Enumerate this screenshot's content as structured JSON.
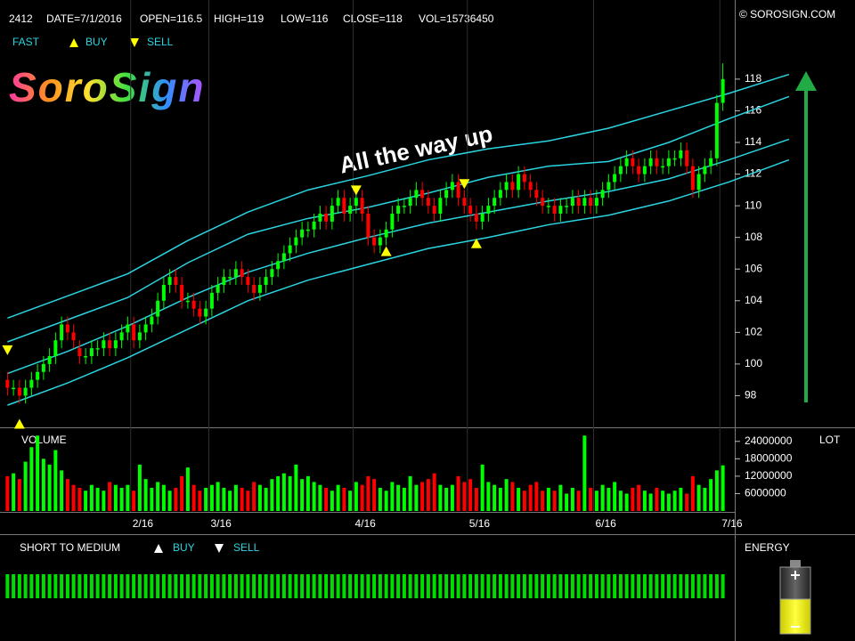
{
  "chart_data": {
    "type": "candlestick",
    "header": [
      "2412",
      "DATE=7/1/2016",
      "OPEN=116.5",
      "HIGH=119",
      "LOW=116",
      "CLOSE=118",
      "VOL=15736450"
    ],
    "copyright": "© SOROSIGN.COM",
    "logo": "SoroSign",
    "legend": {
      "name": "FAST",
      "buy": "BUY",
      "sell": "SELL"
    },
    "annotation": "All the way up",
    "up_color": "#00ff00",
    "down_color": "#ff0000",
    "categories": [
      null,
      null,
      null,
      null,
      null,
      null,
      null,
      null,
      null,
      null,
      null,
      null,
      null,
      null,
      null,
      null,
      null,
      null,
      null,
      null,
      null,
      "2/16",
      null,
      null,
      null,
      null,
      null,
      null,
      null,
      null,
      null,
      null,
      null,
      null,
      "3/16",
      null,
      null,
      null,
      null,
      null,
      null,
      null,
      null,
      null,
      null,
      null,
      null,
      null,
      null,
      null,
      null,
      null,
      null,
      null,
      null,
      null,
      null,
      null,
      "4/16",
      null,
      null,
      null,
      null,
      null,
      null,
      null,
      null,
      null,
      null,
      null,
      null,
      null,
      null,
      null,
      null,
      null,
      null,
      "5/16",
      null,
      null,
      null,
      null,
      null,
      null,
      null,
      null,
      null,
      null,
      null,
      null,
      null,
      null,
      null,
      null,
      null,
      null,
      null,
      null,
      "6/16",
      null,
      null,
      null,
      null,
      null,
      null,
      null,
      null,
      null,
      null,
      null,
      null,
      null,
      null,
      null,
      null,
      null,
      null,
      null,
      null,
      "7/16"
    ],
    "open": [
      99,
      98.5,
      98.5,
      98,
      98.5,
      99,
      99.5,
      100,
      100.5,
      101.5,
      102.5,
      102,
      101,
      100.5,
      100.5,
      101,
      101,
      101.5,
      101,
      101.5,
      102,
      102.5,
      101.5,
      102,
      102.5,
      103,
      104,
      105,
      105.5,
      105,
      104,
      104,
      103.5,
      103,
      103.5,
      104.5,
      105,
      105.5,
      105.5,
      106,
      105.5,
      105,
      104.5,
      105,
      105.5,
      106,
      106.5,
      107,
      107.5,
      108,
      108.5,
      108.5,
      109,
      109.5,
      109,
      110,
      110.5,
      109.5,
      110,
      110.5,
      109.5,
      108,
      107.5,
      108,
      108.5,
      109.5,
      110,
      110,
      110.5,
      111,
      110.5,
      110,
      109.5,
      110.5,
      111,
      111.5,
      110.5,
      110,
      109.5,
      109,
      109.5,
      110,
      110.5,
      111,
      111.5,
      111,
      112,
      111.5,
      111,
      110.5,
      110,
      110,
      109.5,
      110,
      110,
      110.5,
      110,
      110.5,
      110,
      110.5,
      111,
      111.5,
      112,
      112.5,
      113,
      112.5,
      112,
      112.5,
      113,
      112.5,
      112.5,
      113,
      113,
      113.5,
      112.5,
      111,
      112,
      112.5,
      113,
      116.5
    ],
    "high": [
      99.5,
      99,
      99,
      99,
      99.5,
      100,
      100.5,
      101,
      102,
      103,
      103,
      102.5,
      101.5,
      101,
      101.5,
      101.5,
      102,
      102,
      102,
      102.5,
      103,
      103,
      102.5,
      103,
      103.5,
      104.5,
      105.5,
      106,
      106,
      105.5,
      104.5,
      104.5,
      104,
      104,
      105,
      105.5,
      106,
      106,
      106.5,
      106.5,
      106,
      105.5,
      105.5,
      106,
      106.5,
      107,
      107.5,
      108,
      108.5,
      109,
      109,
      109.5,
      110,
      110,
      110.5,
      111,
      111,
      110.5,
      111,
      111,
      110,
      108.5,
      108.5,
      109,
      110,
      110.5,
      110.5,
      111,
      111.5,
      111.5,
      111,
      110.5,
      111,
      111.5,
      112,
      112,
      111,
      110.5,
      110,
      110,
      110.5,
      111,
      111.5,
      112,
      112,
      112.5,
      112.5,
      112,
      111.5,
      111,
      110.5,
      110.5,
      110.5,
      110.5,
      111,
      111,
      111,
      111,
      111,
      111.5,
      112,
      112.5,
      113,
      113.5,
      113.5,
      113,
      113,
      113.5,
      113.5,
      113,
      113.5,
      113.5,
      114,
      114,
      113,
      112.5,
      113,
      113.5,
      117,
      119
    ],
    "low": [
      98,
      98,
      97.5,
      97.5,
      98,
      98.5,
      99,
      99.5,
      100,
      101,
      101.5,
      101,
      100,
      100,
      100,
      100.5,
      100.5,
      100.5,
      100.5,
      101,
      101.5,
      101,
      101,
      101.5,
      102,
      102.5,
      103.5,
      104.5,
      104.5,
      103.5,
      103.5,
      103,
      102.5,
      102.5,
      103,
      104,
      104.5,
      105,
      105,
      105,
      104.5,
      104,
      104,
      104.5,
      105,
      105.5,
      106,
      106.5,
      107,
      107.5,
      108,
      108,
      108.5,
      108.5,
      108.5,
      109.5,
      109,
      109,
      109.5,
      109,
      107.5,
      107,
      107,
      107.5,
      108,
      109,
      109.5,
      109.5,
      110,
      110,
      109.5,
      109,
      109,
      110,
      110.5,
      110,
      109.5,
      109,
      108.5,
      108.5,
      109,
      109.5,
      110,
      110.5,
      110.5,
      110.5,
      111,
      110.5,
      110,
      109.5,
      109.5,
      109,
      109,
      109.5,
      109.5,
      109.5,
      109.5,
      109.5,
      109.5,
      110,
      110.5,
      111,
      111.5,
      112,
      112,
      111.5,
      111.5,
      112,
      112,
      112,
      112,
      112.5,
      112.5,
      112,
      110.5,
      110.5,
      111.5,
      112,
      112.5,
      116
    ],
    "close": [
      98.5,
      98.5,
      98,
      98.5,
      99,
      99.5,
      100,
      100.5,
      101.5,
      102.5,
      102,
      101.5,
      100.5,
      100.5,
      101,
      101,
      101.5,
      101,
      101.5,
      102,
      102.5,
      101.5,
      102,
      102.5,
      103,
      104,
      105,
      105.5,
      105,
      104,
      104,
      103.5,
      103,
      103.5,
      104.5,
      105,
      105.5,
      105.5,
      106,
      105.5,
      105,
      104.5,
      105,
      105.5,
      106,
      106.5,
      107,
      107.5,
      108,
      108.5,
      108.5,
      109,
      109.5,
      109,
      110,
      110.5,
      109.5,
      110,
      110.5,
      109.5,
      108,
      107.5,
      108,
      108.5,
      109.5,
      110,
      110,
      110.5,
      111,
      110.5,
      110,
      109.5,
      110.5,
      111,
      111.5,
      110.5,
      110,
      109.5,
      109,
      109.5,
      110,
      110.5,
      111,
      111.5,
      111,
      112,
      111.5,
      111,
      110.5,
      110,
      110,
      109.5,
      110,
      110,
      110.5,
      110,
      110.5,
      110,
      110.5,
      111,
      111.5,
      112,
      112.5,
      113,
      112.5,
      112,
      112.5,
      113,
      112.5,
      112.5,
      113,
      113,
      113.5,
      112.5,
      111,
      112,
      112.5,
      113,
      116.5,
      118
    ],
    "ylim": [
      96,
      123
    ],
    "yticks": [
      98,
      100,
      102,
      104,
      106,
      108,
      110,
      112,
      114,
      116,
      118
    ],
    "bands": {
      "color": "#2ad4e0",
      "x": [
        0,
        10,
        20,
        30,
        40,
        50,
        60,
        70,
        80,
        90,
        100,
        110,
        120,
        130
      ],
      "series": [
        {
          "values": [
            102.9,
            104.3,
            105.7,
            107.8,
            109.6,
            111,
            111.9,
            112.9,
            113.6,
            114.1,
            114.9,
            116,
            117.1,
            118.3
          ]
        },
        {
          "values": [
            101.4,
            102.8,
            104.2,
            106.4,
            108.2,
            109.2,
            109.9,
            110.8,
            111.8,
            112.5,
            112.8,
            114,
            115.5,
            116.9
          ]
        },
        {
          "values": [
            99.4,
            100.8,
            102.4,
            104.2,
            105.8,
            107,
            108,
            108.9,
            109.6,
            110.3,
            110.9,
            111.7,
            112.9,
            114.2
          ]
        },
        {
          "values": [
            97.4,
            98.8,
            100.4,
            102.2,
            104,
            105.3,
            106.3,
            107.3,
            108,
            108.8,
            109.4,
            110.3,
            111.5,
            112.9
          ]
        }
      ]
    },
    "signal_color": "#ffff00",
    "buy_signals": {
      "x": [
        2,
        63,
        78
      ],
      "values": [
        96.2,
        107.1,
        107.6
      ]
    },
    "sell_signals": {
      "x": [
        0,
        58,
        76
      ],
      "values": [
        100.9,
        111,
        111.4
      ]
    },
    "volume": {
      "label": "VOLUME",
      "unit_label": "LOT",
      "ylim": [
        0,
        27000000
      ],
      "yticks": [
        6000000,
        12000000,
        18000000,
        24000000
      ],
      "values": [
        12000000,
        13000000,
        11000000,
        17000000,
        22000000,
        26000000,
        18000000,
        16000000,
        21000000,
        14000000,
        11000000,
        9000000,
        8000000,
        7000000,
        9000000,
        8000000,
        7000000,
        10000000,
        9000000,
        8000000,
        9000000,
        7000000,
        16000000,
        11000000,
        8000000,
        10000000,
        9000000,
        7000000,
        8000000,
        12000000,
        15000000,
        9000000,
        7000000,
        8000000,
        9000000,
        10000000,
        8000000,
        7000000,
        9000000,
        8000000,
        7000000,
        10000000,
        9000000,
        8000000,
        11000000,
        12000000,
        13000000,
        12000000,
        16000000,
        11000000,
        12000000,
        10000000,
        9000000,
        8000000,
        7000000,
        9000000,
        8000000,
        7000000,
        10000000,
        9000000,
        12000000,
        11000000,
        8000000,
        7000000,
        10000000,
        9000000,
        8000000,
        12000000,
        9000000,
        10000000,
        11000000,
        13000000,
        9000000,
        8000000,
        9000000,
        12000000,
        10000000,
        11000000,
        8000000,
        16000000,
        10000000,
        9000000,
        8000000,
        11000000,
        10000000,
        8000000,
        7000000,
        9000000,
        10000000,
        7000000,
        8000000,
        7000000,
        9000000,
        6000000,
        8000000,
        7000000,
        26000000,
        8000000,
        7000000,
        9000000,
        8000000,
        10000000,
        7000000,
        6000000,
        8000000,
        9000000,
        7000000,
        6000000,
        8000000,
        7000000,
        6000000,
        7000000,
        8000000,
        6000000,
        12000000,
        9000000,
        8000000,
        11000000,
        14000000,
        15736450
      ]
    },
    "indicator": {
      "title": "SHORT TO MEDIUM",
      "buy": "BUY",
      "sell": "SELL",
      "color": "#00dd00"
    },
    "energy": {
      "label": "ENERGY"
    }
  }
}
